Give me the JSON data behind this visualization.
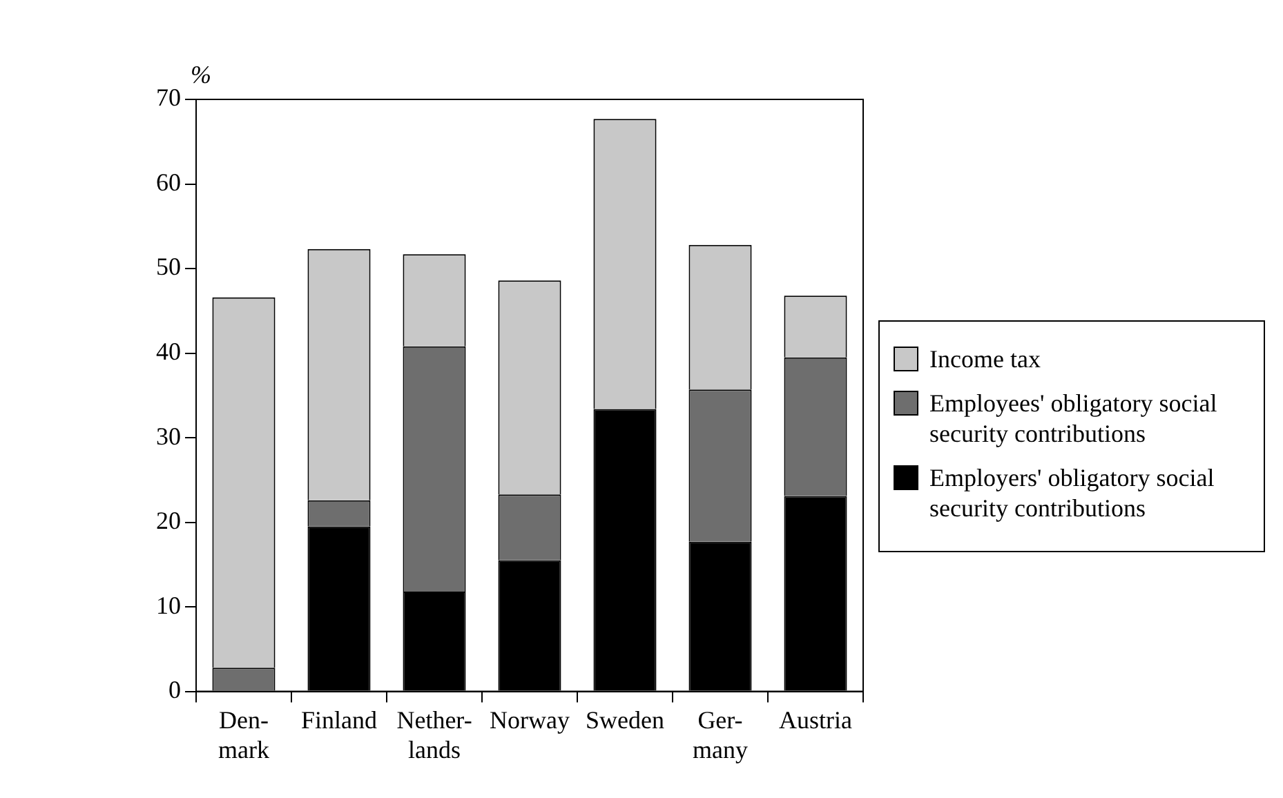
{
  "chart_data": {
    "type": "bar",
    "stacked": true,
    "ylabel": "%",
    "categories": [
      "Den-\nmark",
      "Finland",
      "Nether-\nlands",
      "Norway",
      "Sweden",
      "Ger-\nmany",
      "Austria"
    ],
    "series": [
      {
        "name": "Employers' obligatory social security contributions",
        "color": "#000000",
        "values": [
          0,
          19.5,
          11.8,
          15.5,
          33.4,
          17.7,
          23.1
        ]
      },
      {
        "name": "Employees' obligatory social security contributions",
        "color": "#6e6e6e",
        "values": [
          2.8,
          3.1,
          29.0,
          7.8,
          0,
          18.0,
          16.4
        ]
      },
      {
        "name": "Income tax",
        "color": "#c8c8c8",
        "values": [
          43.8,
          29.7,
          10.9,
          25.3,
          34.3,
          17.1,
          7.3
        ]
      }
    ],
    "ylim": [
      0,
      70
    ],
    "yticks": [
      0,
      10,
      20,
      30,
      40,
      50,
      60,
      70
    ],
    "grid": false,
    "legend": "right"
  }
}
